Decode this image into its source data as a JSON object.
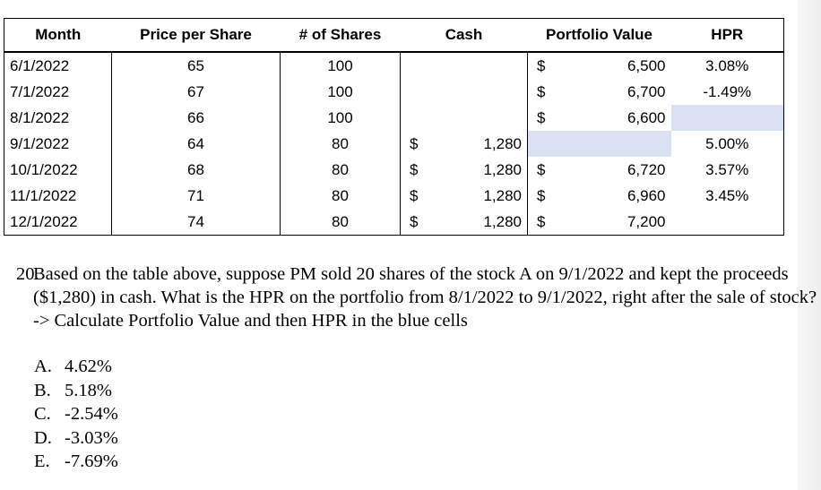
{
  "table": {
    "headers": [
      "Month",
      "Price per Share",
      "# of Shares",
      "Cash",
      "Portfolio Value",
      "HPR"
    ],
    "currency_symbol": "$",
    "highlight_color": "#d9e1f2",
    "rows": [
      {
        "month": "6/1/2022",
        "price": "65",
        "shares": "100",
        "cash": "",
        "value": "6,500",
        "hpr": "3.08%"
      },
      {
        "month": "7/1/2022",
        "price": "67",
        "shares": "100",
        "cash": "",
        "value": "6,700",
        "hpr": "-1.49%"
      },
      {
        "month": "8/1/2022",
        "price": "66",
        "shares": "100",
        "cash": "",
        "value": "6,600",
        "hpr": ""
      },
      {
        "month": "9/1/2022",
        "price": "64",
        "shares": "80",
        "cash": "1,280",
        "value": "",
        "hpr": "5.00%"
      },
      {
        "month": "10/1/2022",
        "price": "68",
        "shares": "80",
        "cash": "1,280",
        "value": "6,720",
        "hpr": "3.57%"
      },
      {
        "month": "11/1/2022",
        "price": "71",
        "shares": "80",
        "cash": "1,280",
        "value": "6,960",
        "hpr": "3.45%"
      },
      {
        "month": "12/1/2022",
        "price": "74",
        "shares": "80",
        "cash": "1,280",
        "value": "7,200",
        "hpr": ""
      }
    ]
  },
  "question": {
    "number": "20.",
    "text": "Based on the table above, suppose PM sold 20 shares of the stock A on 9/1/2022 and kept the proceeds ($1,280) in cash.  What is the HPR on the portfolio from 8/1/2022 to 9/1/2022, right after the sale of stock? -> Calculate Portfolio Value and then HPR in the blue cells"
  },
  "choices": [
    {
      "letter": "A.",
      "text": "4.62%"
    },
    {
      "letter": "B.",
      "text": "5.18%"
    },
    {
      "letter": "C.",
      "text": "-2.54%"
    },
    {
      "letter": "D.",
      "text": "-3.03%"
    },
    {
      "letter": "E.",
      "text": "-7.69%"
    }
  ]
}
